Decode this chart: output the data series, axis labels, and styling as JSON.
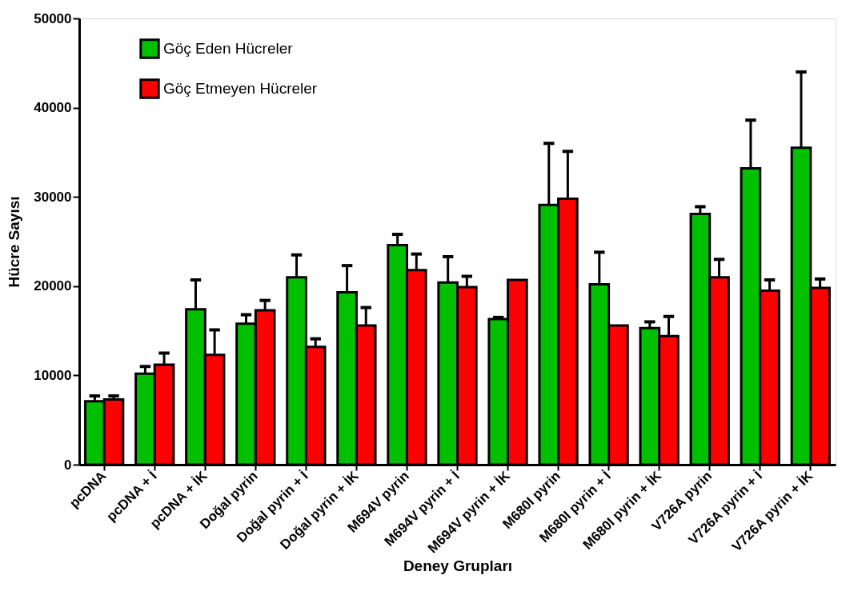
{
  "chart_data": {
    "type": "bar",
    "xlabel": "Deney Grupları",
    "ylabel": "Hücre Sayısı",
    "categories": [
      "pcDNA",
      "pcDNA + İ",
      "pcDNA + İK",
      "Doğal pyrin",
      "Doğal pyrin + İ",
      "Doğal pyrin + İK",
      "M694V pyrin",
      "M694V pyrin + İ",
      "M694V pyrin + İK",
      "M680I pyrin",
      "M680I pyrin + İ",
      "M680I pyrin + İK",
      "V726A pyrin",
      "V726A pyrin + İ",
      "V726A pyrin + İK"
    ],
    "series": [
      {
        "name": "Göç Eden Hücreler",
        "color": "#00c000",
        "values": [
          7100,
          10200,
          17400,
          15800,
          21000,
          19300,
          24600,
          20400,
          16300,
          29100,
          20200,
          15300,
          28100,
          33200,
          35500
        ],
        "errors": [
          [
            7100,
            7700
          ],
          [
            10200,
            11000
          ],
          [
            17400,
            20700
          ],
          [
            15800,
            16800
          ],
          [
            21000,
            23500
          ],
          [
            19300,
            22300
          ],
          [
            24600,
            25800
          ],
          [
            20400,
            23300
          ],
          [
            16300,
            16500
          ],
          [
            29100,
            36000
          ],
          [
            20200,
            23800
          ],
          [
            15300,
            16000
          ],
          [
            28100,
            28900
          ],
          [
            33200,
            38600
          ],
          [
            35500,
            44000
          ]
        ]
      },
      {
        "name": "Göç Etmeyen Hücreler",
        "color": "#ff0000",
        "values": [
          7300,
          11200,
          12300,
          17300,
          13200,
          15600,
          21800,
          19900,
          20700,
          29800,
          15600,
          14400,
          21000,
          19500,
          19800
        ],
        "errors": [
          [
            7300,
            7700
          ],
          [
            11200,
            12500
          ],
          [
            12300,
            15100
          ],
          [
            17300,
            18400
          ],
          [
            13200,
            14100
          ],
          [
            15600,
            17600
          ],
          [
            21800,
            23600
          ],
          [
            19900,
            21100
          ],
          null,
          [
            29800,
            35100
          ],
          null,
          [
            14400,
            16600
          ],
          [
            21000,
            23000
          ],
          [
            19500,
            20700
          ],
          [
            19800,
            20800
          ]
        ]
      }
    ],
    "ylim": [
      0,
      50000
    ],
    "yticks": [
      0,
      10000,
      20000,
      30000,
      40000,
      50000
    ],
    "grid": false,
    "legend": "top left"
  }
}
